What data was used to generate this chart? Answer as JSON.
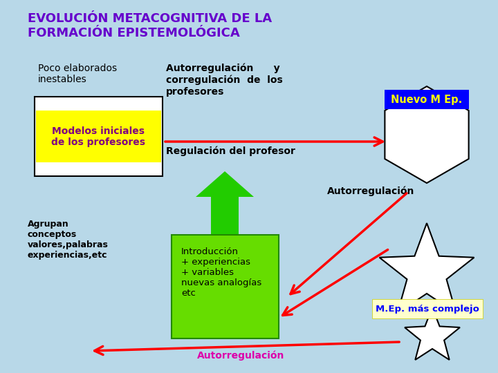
{
  "title": "EVOLUCIÓN METACOGNITIVA DE LA\nFORMACIÓN EPISTEMOLÓGICA",
  "title_color": "#6600cc",
  "bg_color": "#b8d8e8",
  "text_poco": "Poco elaborados\ninestables",
  "text_autorregulacion_top": "Autorregulación      y\ncorregulación  de  los\nprofesores",
  "text_regulacion": "Regulación del profesor",
  "text_autorregulacion_mid": "Autorregulación",
  "text_agrupan": "Agrupan\nconceptos\nvalores,palabras\nexperiencias,etc",
  "text_introduccion": "Introducción\n+ experiencias\n+ variables\nnuevas analogías\netc",
  "text_nuevo": "Nuevo M Ep.",
  "text_mep": "M.Ep. más complejo",
  "text_autorregulacion_bot": "Autorregulación",
  "text_modelos": "Modelos iniciales\nde los profesores"
}
